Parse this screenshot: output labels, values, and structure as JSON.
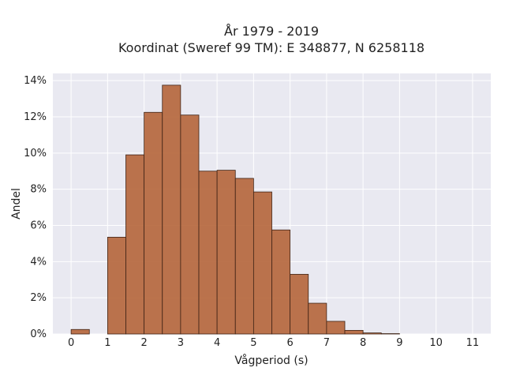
{
  "chart_data": {
    "type": "bar",
    "title": [
      "År 1979 - 2019",
      "Koordinat (Sweref 99 TM): E 348877, N 6258118"
    ],
    "xlabel": "Vågperiod (s)",
    "ylabel": "Andel",
    "xlim": [
      -0.5,
      11.5
    ],
    "ylim": [
      0,
      14.4
    ],
    "x_ticks": [
      0,
      1,
      2,
      3,
      4,
      5,
      6,
      7,
      8,
      9,
      10,
      11
    ],
    "x_tick_labels": [
      "0",
      "1",
      "2",
      "3",
      "4",
      "5",
      "6",
      "7",
      "8",
      "9",
      "10",
      "11"
    ],
    "y_ticks": [
      0,
      2,
      4,
      6,
      8,
      10,
      12,
      14
    ],
    "y_tick_labels": [
      "0%",
      "2%",
      "4%",
      "6%",
      "8%",
      "10%",
      "12%",
      "14%"
    ],
    "bin_width": 0.5,
    "bins": [
      {
        "x0": 0.0,
        "value": 0.25
      },
      {
        "x0": 1.0,
        "value": 5.35
      },
      {
        "x0": 1.5,
        "value": 9.9
      },
      {
        "x0": 2.0,
        "value": 12.25
      },
      {
        "x0": 2.5,
        "value": 13.75
      },
      {
        "x0": 3.0,
        "value": 12.1
      },
      {
        "x0": 3.5,
        "value": 9.0
      },
      {
        "x0": 4.0,
        "value": 9.05
      },
      {
        "x0": 4.5,
        "value": 8.6
      },
      {
        "x0": 5.0,
        "value": 7.85
      },
      {
        "x0": 5.5,
        "value": 5.75
      },
      {
        "x0": 6.0,
        "value": 3.3
      },
      {
        "x0": 6.5,
        "value": 1.7
      },
      {
        "x0": 7.0,
        "value": 0.7
      },
      {
        "x0": 7.5,
        "value": 0.2
      },
      {
        "x0": 8.0,
        "value": 0.06
      },
      {
        "x0": 8.5,
        "value": 0.02
      }
    ],
    "grid": true,
    "colors": {
      "bar_fill": "#b5653a",
      "bar_stroke": "#3f2416",
      "plot_bg": "#e9e9f1",
      "grid": "#ffffff"
    }
  }
}
